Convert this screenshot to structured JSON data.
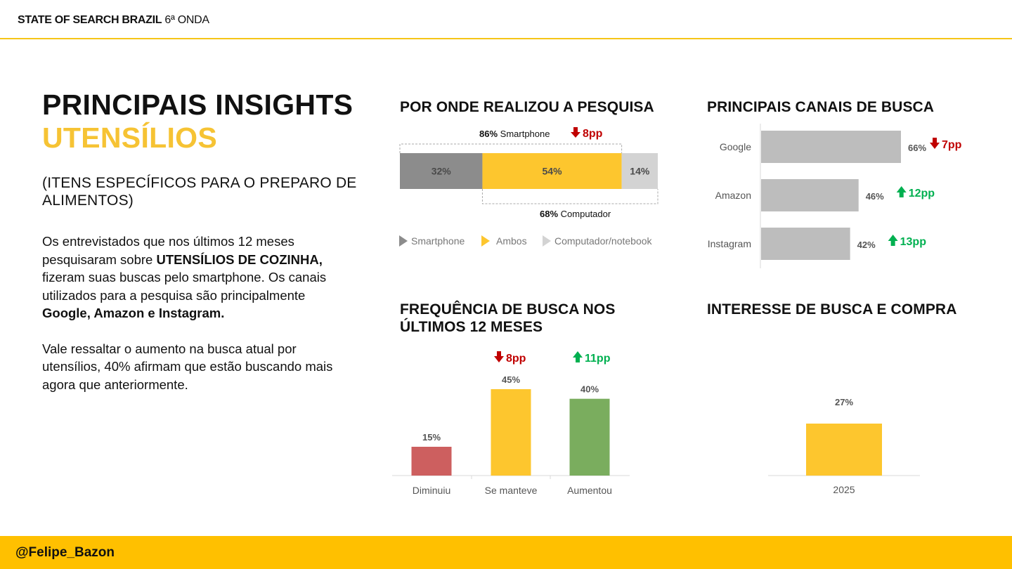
{
  "header": {
    "title_bold": "STATE OF SEARCH BRAZIL",
    "title_rest": "6ª ONDA"
  },
  "footer": {
    "handle": "@Felipe_Bazon"
  },
  "left": {
    "title_line1": "PRINCIPAIS INSIGHTS",
    "title_line2": "UTENSÍLIOS",
    "subtitle": "(ITENS ESPECÍFICOS PARA O PREPARO DE ALIMENTOS)",
    "p1_a": "Os entrevistados que nos últimos 12 meses pesquisaram sobre ",
    "p1_b": "UTENSÍLIOS DE COZINHA,",
    "p1_c": " fizeram suas buscas pelo smartphone. Os canais utilizados para a pesquisa são principalmente ",
    "p1_d": "Google, Amazon e Instagram.",
    "p2": "Vale ressaltar o aumento na busca atual por utensílios, 40% afirmam que estão buscando mais agora que anteriormente."
  },
  "colors": {
    "yellow": "#FDC62E",
    "darkgray": "#8C8C8C",
    "lightgray": "#D3D3D3",
    "bargray": "#BDBDBD",
    "red": "#C00000",
    "green": "#00B050",
    "barred": "#CD5F5F",
    "bargreen": "#7AAD5E"
  },
  "chart_data": [
    {
      "id": "device",
      "type": "bar",
      "title": "POR ONDE REALIZOU A PESQUISA",
      "orientation": "stacked-horizontal",
      "series": [
        {
          "name": "Smartphone",
          "value": 32,
          "label": "32%"
        },
        {
          "name": "Ambos",
          "value": 54,
          "label": "54%"
        },
        {
          "name": "Computador/notebook",
          "value": 14,
          "label": "14%"
        }
      ],
      "annotation_top": {
        "value": "86%",
        "text": "Smartphone",
        "delta": "8pp",
        "direction": "down"
      },
      "annotation_bottom": {
        "value": "68%",
        "text": "Computador"
      },
      "legend": [
        "Smartphone",
        "Ambos",
        "Computador/notebook"
      ]
    },
    {
      "id": "channels",
      "type": "bar",
      "title": "PRINCIPAIS CANAIS DE BUSCA",
      "orientation": "horizontal",
      "categories": [
        "Google",
        "Amazon",
        "Instagram"
      ],
      "values": [
        66,
        46,
        42
      ],
      "labels": [
        "66%",
        "46%",
        "42%"
      ],
      "deltas": [
        {
          "text": "7pp",
          "direction": "down"
        },
        {
          "text": "12pp",
          "direction": "up"
        },
        {
          "text": "13pp",
          "direction": "up"
        }
      ],
      "xlim": [
        0,
        66
      ]
    },
    {
      "id": "frequency",
      "type": "bar",
      "title": "FREQUÊNCIA DE BUSCA NOS ÚLTIMOS 12 MESES",
      "categories": [
        "Diminuiu",
        "Se manteve",
        "Aumentou"
      ],
      "values": [
        15,
        45,
        40
      ],
      "labels": [
        "15%",
        "45%",
        "40%"
      ],
      "deltas": [
        null,
        {
          "text": "8pp",
          "direction": "down"
        },
        {
          "text": "11pp",
          "direction": "up"
        }
      ],
      "ylim": [
        0,
        45
      ]
    },
    {
      "id": "interest",
      "type": "bar",
      "title": "INTERESSE DE BUSCA E COMPRA",
      "categories": [
        "2025"
      ],
      "values": [
        27
      ],
      "labels": [
        "27%"
      ],
      "ylim": [
        0,
        27
      ]
    }
  ]
}
